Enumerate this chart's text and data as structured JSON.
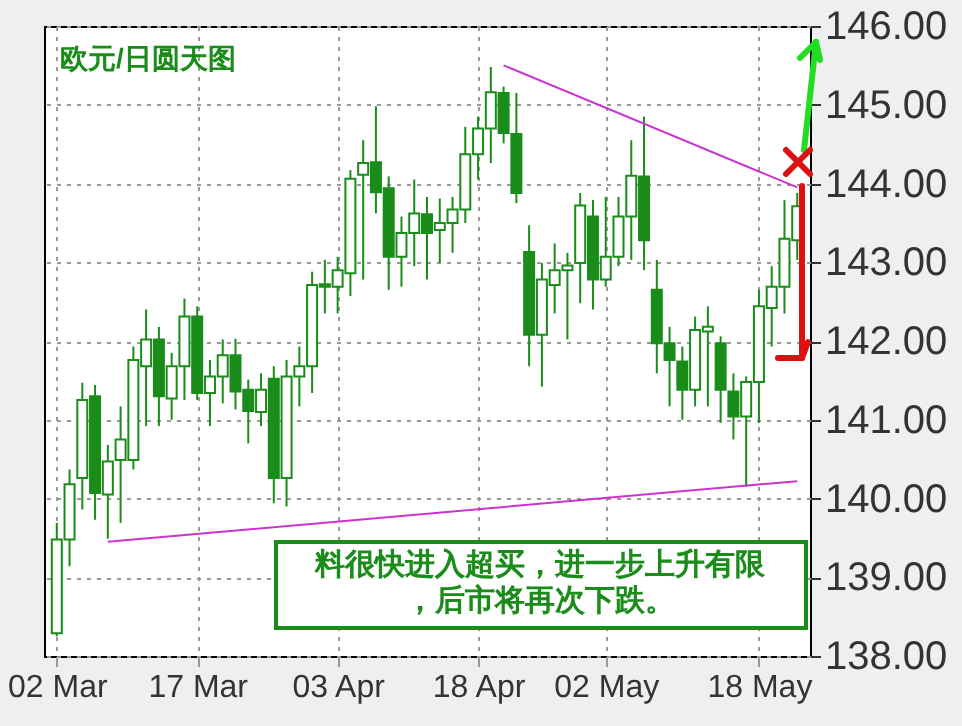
{
  "chart_data": {
    "type": "candlestick",
    "title": "欧元/日圆天图",
    "categories": [
      "02 Mar",
      null,
      null,
      null,
      null,
      null,
      null,
      null,
      null,
      null,
      null,
      "17 Mar",
      null,
      null,
      null,
      null,
      null,
      null,
      null,
      null,
      null,
      null,
      "03 Apr",
      null,
      null,
      null,
      null,
      null,
      null,
      null,
      null,
      null,
      null,
      "18 Apr",
      null,
      null,
      null,
      null,
      null,
      null,
      null,
      null,
      null,
      "02 May",
      null,
      null,
      null,
      null,
      null,
      null,
      null,
      null,
      null,
      null,
      null,
      "18 May",
      null,
      null,
      null
    ],
    "color": "#1a8c1a",
    "ohlc": [
      [
        138.29,
        139.69,
        138.25,
        139.48
      ],
      [
        139.48,
        140.37,
        139.14,
        140.18
      ],
      [
        140.26,
        141.47,
        139.86,
        141.25
      ],
      [
        141.3,
        141.44,
        139.73,
        140.07
      ],
      [
        140.05,
        140.68,
        139.49,
        140.47
      ],
      [
        140.49,
        141.17,
        139.69,
        140.75
      ],
      [
        140.49,
        141.93,
        140.37,
        141.76
      ],
      [
        141.68,
        142.4,
        140.92,
        142.02
      ],
      [
        142.02,
        142.18,
        140.92,
        141.3
      ],
      [
        141.27,
        141.85,
        141.0,
        141.68
      ],
      [
        141.68,
        142.54,
        141.25,
        142.31
      ],
      [
        142.31,
        142.44,
        141.25,
        141.34
      ],
      [
        141.34,
        141.76,
        140.92,
        141.55
      ],
      [
        141.55,
        142.02,
        141.21,
        141.82
      ],
      [
        141.82,
        142.03,
        141.13,
        141.36
      ],
      [
        141.38,
        141.51,
        140.7,
        141.11
      ],
      [
        141.1,
        141.59,
        140.92,
        141.38
      ],
      [
        141.52,
        141.68,
        139.94,
        140.26
      ],
      [
        140.26,
        141.76,
        139.9,
        141.55
      ],
      [
        141.55,
        141.93,
        141.17,
        141.68
      ],
      [
        141.68,
        142.88,
        141.34,
        142.71
      ],
      [
        142.72,
        143.03,
        142.35,
        142.69
      ],
      [
        142.69,
        143.07,
        142.35,
        142.9
      ],
      [
        142.86,
        144.17,
        142.57,
        144.06
      ],
      [
        144.11,
        144.55,
        142.78,
        144.26
      ],
      [
        144.27,
        144.98,
        143.62,
        143.89
      ],
      [
        143.94,
        144.09,
        142.65,
        143.07
      ],
      [
        143.07,
        143.58,
        142.69,
        143.37
      ],
      [
        143.37,
        144.05,
        142.95,
        143.62
      ],
      [
        143.61,
        143.83,
        142.78,
        143.37
      ],
      [
        143.41,
        143.81,
        142.99,
        143.5
      ],
      [
        143.5,
        143.83,
        143.12,
        143.67
      ],
      [
        143.67,
        144.72,
        143.5,
        144.37
      ],
      [
        144.37,
        144.85,
        144.05,
        144.7
      ],
      [
        144.7,
        145.48,
        144.26,
        145.16
      ],
      [
        145.15,
        145.23,
        144.51,
        144.64
      ],
      [
        144.63,
        145.15,
        143.75,
        143.88
      ],
      [
        143.13,
        143.47,
        141.68,
        142.08
      ],
      [
        142.08,
        142.99,
        141.42,
        142.78
      ],
      [
        142.71,
        143.24,
        142.35,
        142.9
      ],
      [
        142.9,
        143.12,
        142.02,
        142.96
      ],
      [
        142.99,
        143.88,
        142.48,
        143.72
      ],
      [
        143.58,
        143.79,
        142.4,
        142.78
      ],
      [
        142.78,
        143.83,
        142.69,
        143.07
      ],
      [
        143.07,
        143.83,
        142.95,
        143.58
      ],
      [
        143.58,
        144.55,
        143.03,
        144.1
      ],
      [
        144.09,
        144.85,
        142.9,
        143.28
      ],
      [
        142.65,
        143.03,
        141.59,
        141.97
      ],
      [
        141.97,
        142.18,
        141.17,
        141.76
      ],
      [
        141.74,
        141.93,
        141.0,
        141.38
      ],
      [
        141.38,
        142.31,
        141.17,
        142.14
      ],
      [
        142.12,
        142.44,
        141.17,
        142.18
      ],
      [
        141.97,
        142.06,
        140.96,
        141.38
      ],
      [
        141.36,
        141.59,
        140.75,
        141.04
      ],
      [
        141.04,
        141.55,
        140.15,
        141.48
      ],
      [
        141.48,
        142.65,
        140.96,
        142.44
      ],
      [
        142.42,
        142.95,
        141.93,
        142.69
      ],
      [
        142.69,
        143.79,
        142.35,
        143.3
      ],
      [
        143.28,
        143.88,
        143.03,
        143.71
      ]
    ],
    "series": [
      {
        "type": "line",
        "color": "#cc33cc",
        "values": [
          null,
          null,
          null,
          null,
          139.45,
          null,
          null,
          null,
          null,
          null,
          null,
          null,
          null,
          null,
          null,
          null,
          null,
          null,
          null,
          null,
          null,
          null,
          null,
          null,
          null,
          null,
          null,
          null,
          null,
          null,
          null,
          null,
          null,
          null,
          null,
          null,
          null,
          null,
          null,
          null,
          null,
          null,
          null,
          null,
          null,
          null,
          null,
          null,
          null,
          null,
          null,
          null,
          null,
          null,
          null,
          null,
          null,
          null,
          140.22
        ]
      },
      {
        "type": "line",
        "color": "#cc33cc",
        "values": [
          null,
          null,
          null,
          null,
          null,
          null,
          null,
          null,
          null,
          null,
          null,
          null,
          null,
          null,
          null,
          null,
          null,
          null,
          null,
          null,
          null,
          null,
          null,
          null,
          null,
          null,
          null,
          null,
          null,
          null,
          null,
          null,
          null,
          null,
          null,
          145.5,
          null,
          null,
          null,
          null,
          null,
          null,
          null,
          null,
          null,
          null,
          null,
          null,
          null,
          null,
          null,
          null,
          null,
          null,
          null,
          null,
          null,
          null,
          143.95
        ]
      }
    ],
    "ylim": [
      138,
      146
    ],
    "yticks": [
      {
        "value": 138,
        "label": "138.00"
      },
      {
        "value": 139,
        "label": "139.00"
      },
      {
        "value": 140,
        "label": "140.00"
      },
      {
        "value": 141,
        "label": "141.00"
      },
      {
        "value": 142,
        "label": "142.00"
      },
      {
        "value": 143,
        "label": "143.00"
      },
      {
        "value": 144,
        "label": "144.00"
      },
      {
        "value": 145,
        "label": "145.00"
      },
      {
        "value": 146,
        "label": "146.00"
      }
    ],
    "grid": true,
    "annotations": [
      "料很快进入超买，进一步上升有限，后市将再次下跌。"
    ]
  }
}
